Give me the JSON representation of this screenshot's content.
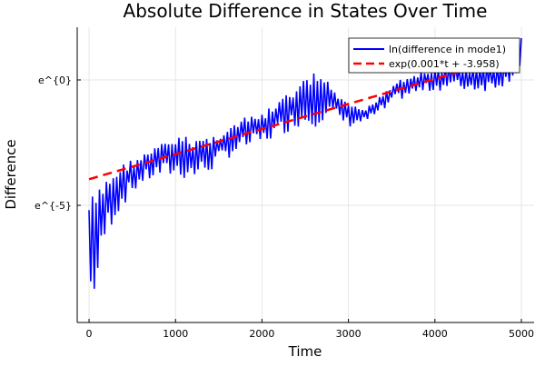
{
  "chart_data": {
    "type": "line",
    "title": "Absolute Difference in States Over Time",
    "xlabel": "Time",
    "ylabel": "Difference",
    "xlim": [
      -137,
      5147
    ],
    "ylim": [
      -9.67,
      2.1
    ],
    "x_ticks": [
      0,
      1000,
      2000,
      3000,
      4000,
      5000
    ],
    "x_tick_labels": [
      "0",
      "1000",
      "2000",
      "3000",
      "4000",
      "5000"
    ],
    "y_ticks": [
      0,
      -5
    ],
    "y_tick_labels": [
      "e^{0}",
      "e^{-5}"
    ],
    "grid": true,
    "legend_position": "top-right",
    "series": [
      {
        "name": "ln(difference in mode1)",
        "color": "#0000ff",
        "style": "solid",
        "oscillation_period": 40,
        "envelope_t": [
          0,
          100,
          200,
          400,
          600,
          800,
          1000,
          1200,
          1400,
          1600,
          1800,
          2000,
          2200,
          2400,
          2600,
          2700,
          2800,
          3000,
          3200,
          3400,
          3600,
          3800,
          4000,
          4200,
          4400,
          4600,
          4800,
          5000
        ],
        "envelope_upper": [
          -4.6,
          -4.4,
          -3.9,
          -3.3,
          -3.0,
          -2.6,
          -2.25,
          -2.25,
          -2.25,
          -1.9,
          -1.5,
          -1.35,
          -0.8,
          -0.25,
          0.35,
          0.2,
          -0.25,
          -1.0,
          -1.15,
          -0.45,
          0.1,
          0.3,
          0.45,
          0.65,
          0.5,
          0.6,
          0.65,
          1.75
        ],
        "envelope_lower": [
          -9.4,
          -8.4,
          -6.2,
          -5.0,
          -4.2,
          -3.9,
          -3.9,
          -4.05,
          -3.7,
          -3.15,
          -2.8,
          -2.6,
          -2.25,
          -1.9,
          -1.9,
          -1.7,
          -1.5,
          -1.9,
          -1.7,
          -1.35,
          -0.8,
          -0.6,
          -0.45,
          -0.4,
          -0.45,
          -0.45,
          -0.25,
          0.3
        ]
      },
      {
        "name": "exp(0.001*t + -3.958)",
        "color": "#ff0000",
        "style": "dashed",
        "slope": 0.001,
        "intercept": -3.958,
        "t_range": [
          0,
          5000
        ]
      }
    ]
  }
}
